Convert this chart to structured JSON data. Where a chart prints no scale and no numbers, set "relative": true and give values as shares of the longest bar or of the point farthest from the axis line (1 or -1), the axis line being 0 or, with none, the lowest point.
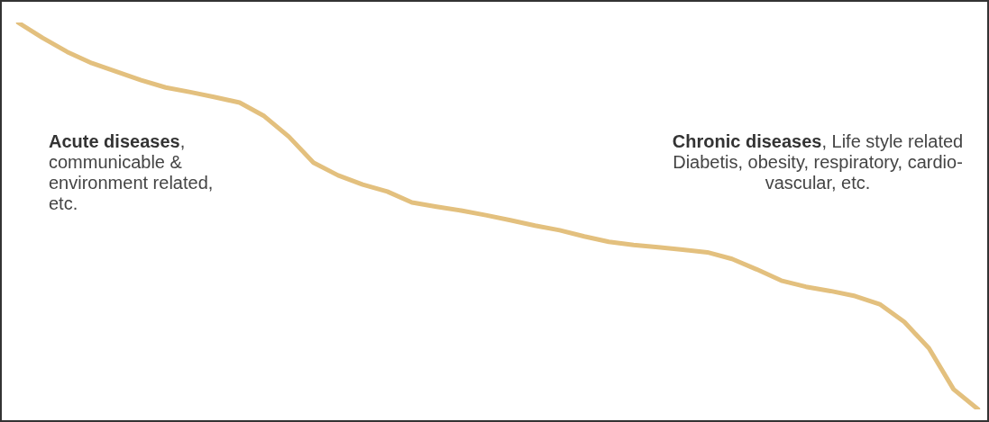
{
  "chart_data": {
    "type": "line",
    "relative": true,
    "color": "#e3c07e",
    "marker": "none",
    "line_style": "solid",
    "legend": false,
    "categories": [
      null,
      null,
      null,
      null,
      null,
      null,
      null,
      null,
      null,
      null,
      null,
      null,
      null,
      null,
      null,
      null,
      null,
      null,
      null,
      null,
      null,
      null,
      null,
      null,
      null,
      null,
      null,
      null,
      null,
      null,
      null,
      null,
      null,
      null,
      null,
      null,
      null,
      null,
      null,
      null
    ],
    "values": [
      1,
      0.96,
      0.924,
      0.895,
      0.873,
      0.851,
      0.832,
      0.82,
      0.807,
      0.793,
      0.758,
      0.705,
      0.638,
      0.605,
      0.581,
      0.563,
      0.535,
      0.524,
      0.514,
      0.502,
      0.489,
      0.475,
      0.463,
      0.447,
      0.433,
      0.425,
      0.419,
      0.413,
      0.406,
      0.389,
      0.362,
      0.333,
      0.317,
      0.306,
      0.293,
      0.272,
      0.226,
      0.158,
      0.052,
      0
    ],
    "annotations": [
      "Acute diseases, communicable & environment related, etc.",
      "Chronic diseases, Life style related Diabetis, obesity, respiratory, cardio-vascular, etc."
    ]
  }
}
